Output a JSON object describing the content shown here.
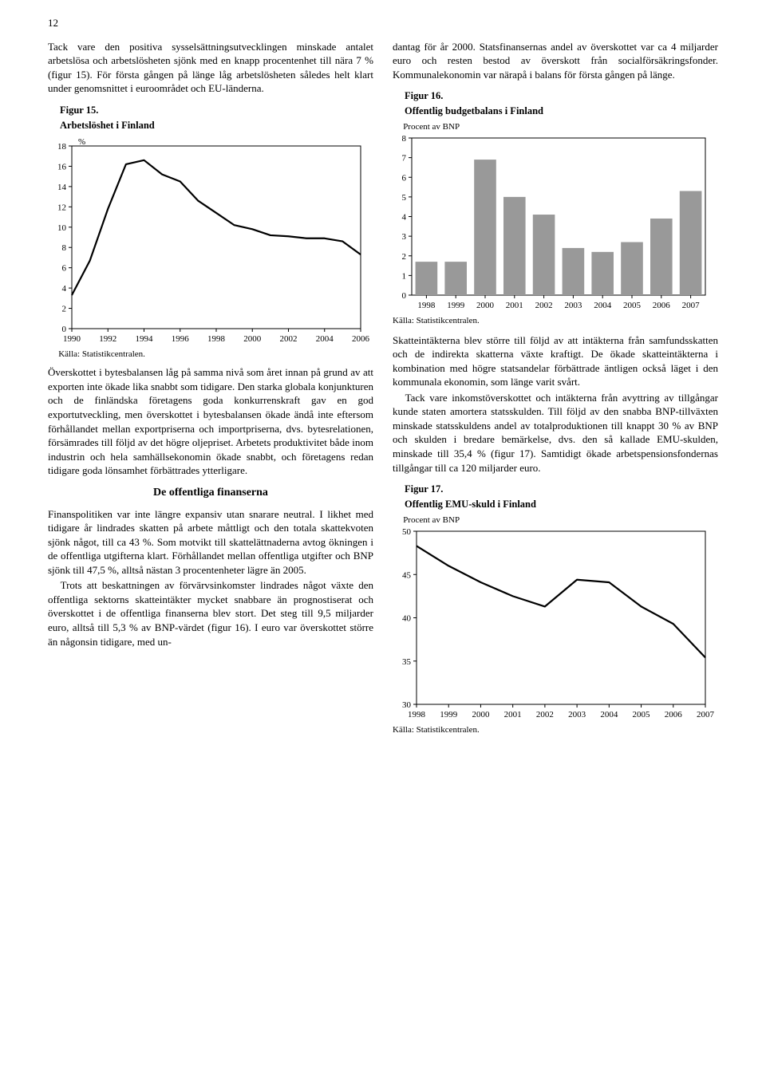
{
  "page_number": "12",
  "col1": {
    "para1": "Tack vare den positiva sysselsättningsutvecklingen minskade antalet arbetslösa och arbetslösheten sjönk med en knapp procentenhet till nära 7 % (figur 15). För första gången på länge låg arbetslösheten således helt klart under genomsnittet i euroområdet och EU-länderna.",
    "fig15_title": "Figur 15.",
    "fig15_sub": "Arbetslöshet i Finland",
    "fig15_unit": "%",
    "fig15_source": "Källa: Statistikcentralen.",
    "para2": "Överskottet i bytesbalansen låg på samma nivå som året innan på grund av att exporten inte ökade lika snabbt som tidigare. Den starka globala konjunkturen och de finländska företagens goda konkurrenskraft gav en god exportutveckling, men överskottet i bytesbalansen ökade ändå inte eftersom förhållandet mellan exportpriserna och importpriserna, dvs. bytesrelationen, försämrades till följd av det högre oljepriset. Arbetets produktivitet både inom industrin och hela samhällsekonomin ökade snabbt, och företagens redan tidigare goda lönsamhet förbättrades ytterligare.",
    "section_heading": "De offentliga finanserna",
    "para3": "Finanspolitiken var inte längre expansiv utan snarare neutral. I likhet med tidigare år lindrades skatten på arbete måttligt och den totala skattekvoten sjönk något, till ca 43 %. Som motvikt till skattelättnaderna avtog ökningen i de offentliga utgifterna klart. Förhållandet mellan offentliga utgifter och BNP sjönk till 47,5 %, alltså nästan 3 procentenheter lägre än 2005.",
    "para4": "Trots att beskattningen av förvärvsinkomster lindrades något växte den offentliga sektorns skatteintäkter mycket snabbare än prognostiserat och överskottet i de offentliga finanserna blev stort. Det steg till 9,5 miljarder euro, alltså till 5,3 % av BNP-värdet (figur 16). I euro var överskottet större än någonsin tidigare, med un-"
  },
  "col2": {
    "para1": "dantag för år 2000. Statsfinansernas andel av överskottet var ca 4 miljarder euro och resten bestod av överskott från socialförsäkringsfonder. Kommunalekonomin var närapå i balans för första gången på länge.",
    "fig16_title": "Figur 16.",
    "fig16_sub": "Offentlig budgetbalans i Finland",
    "fig16_unit": "Procent av BNP",
    "fig16_source": "Källa: Statistikcentralen.",
    "para2": "Skatteintäkterna blev större till följd av att intäkterna från samfundsskatten och de indirekta skatterna växte kraftigt. De ökade skatteintäkterna i kombination med högre statsandelar förbättrade äntligen också läget i den kommunala ekonomin, som länge varit svårt.",
    "para3": "Tack vare inkomstöverskottet och intäkterna från avyttring av tillgångar kunde staten amortera statsskulden. Till följd av den snabba BNP-tillväxten minskade statsskuldens andel av totalproduktionen till knappt 30 % av BNP och skulden i bredare bemärkelse, dvs. den så kallade EMU-skulden, minskade till 35,4 % (figur 17). Samtidigt ökade arbetspensionsfondernas tillgångar till ca 120 miljarder euro.",
    "fig17_title": "Figur 17.",
    "fig17_sub": "Offentlig EMU-skuld i Finland",
    "fig17_unit": "Procent av BNP",
    "fig17_source": "Källa: Statistikcentralen."
  },
  "chart15": {
    "type": "line",
    "x_years": [
      1990,
      1991,
      1992,
      1993,
      1994,
      1995,
      1996,
      1997,
      1998,
      1999,
      2000,
      2001,
      2002,
      2003,
      2004,
      2005,
      2006
    ],
    "y_values": [
      3.3,
      6.7,
      11.8,
      16.2,
      16.6,
      15.2,
      14.5,
      12.6,
      11.4,
      10.2,
      9.8,
      9.2,
      9.1,
      8.9,
      8.9,
      8.6,
      7.3
    ],
    "y_ticks": [
      0,
      2,
      4,
      6,
      8,
      10,
      12,
      14,
      16,
      18
    ],
    "y_min": 0,
    "y_max": 18,
    "x_tick_labels": [
      "1990",
      "1992",
      "1994",
      "1996",
      "1998",
      "2000",
      "2002",
      "2004",
      "2006"
    ],
    "x_tick_positions": [
      1990,
      1992,
      1994,
      1996,
      1998,
      2000,
      2002,
      2004,
      2006
    ],
    "stroke": "#000000",
    "stroke_width": 2.2,
    "axis_color": "#000000",
    "bg": "#ffffff",
    "axis_font": 11
  },
  "chart16": {
    "type": "bar",
    "years": [
      1998,
      1999,
      2000,
      2001,
      2002,
      2003,
      2004,
      2005,
      2006,
      2007
    ],
    "values": [
      1.7,
      1.7,
      6.9,
      5.0,
      4.1,
      2.4,
      2.2,
      2.7,
      3.9,
      5.3
    ],
    "y_ticks": [
      0,
      1,
      2,
      3,
      4,
      5,
      6,
      7,
      8
    ],
    "y_min": 0,
    "y_max": 8,
    "bar_color": "#999999",
    "axis_color": "#000000",
    "bg": "#ffffff",
    "axis_font": 11,
    "bar_gap_ratio": 0.25
  },
  "chart17": {
    "type": "line",
    "years": [
      1998,
      1999,
      2000,
      2001,
      2002,
      2003,
      2004,
      2005,
      2006,
      2007
    ],
    "values": [
      48.3,
      46.0,
      44.1,
      42.5,
      41.3,
      44.4,
      44.1,
      41.3,
      39.3,
      35.4
    ],
    "y_ticks": [
      30,
      35,
      40,
      45,
      50
    ],
    "y_min": 30,
    "y_max": 50,
    "x_labels": [
      "1998",
      "1999",
      "2000",
      "2001",
      "2002",
      "2003",
      "2004",
      "2005",
      "2006",
      "2007"
    ],
    "stroke": "#000000",
    "stroke_width": 2.2,
    "axis_color": "#000000",
    "bg": "#ffffff",
    "axis_font": 11
  }
}
